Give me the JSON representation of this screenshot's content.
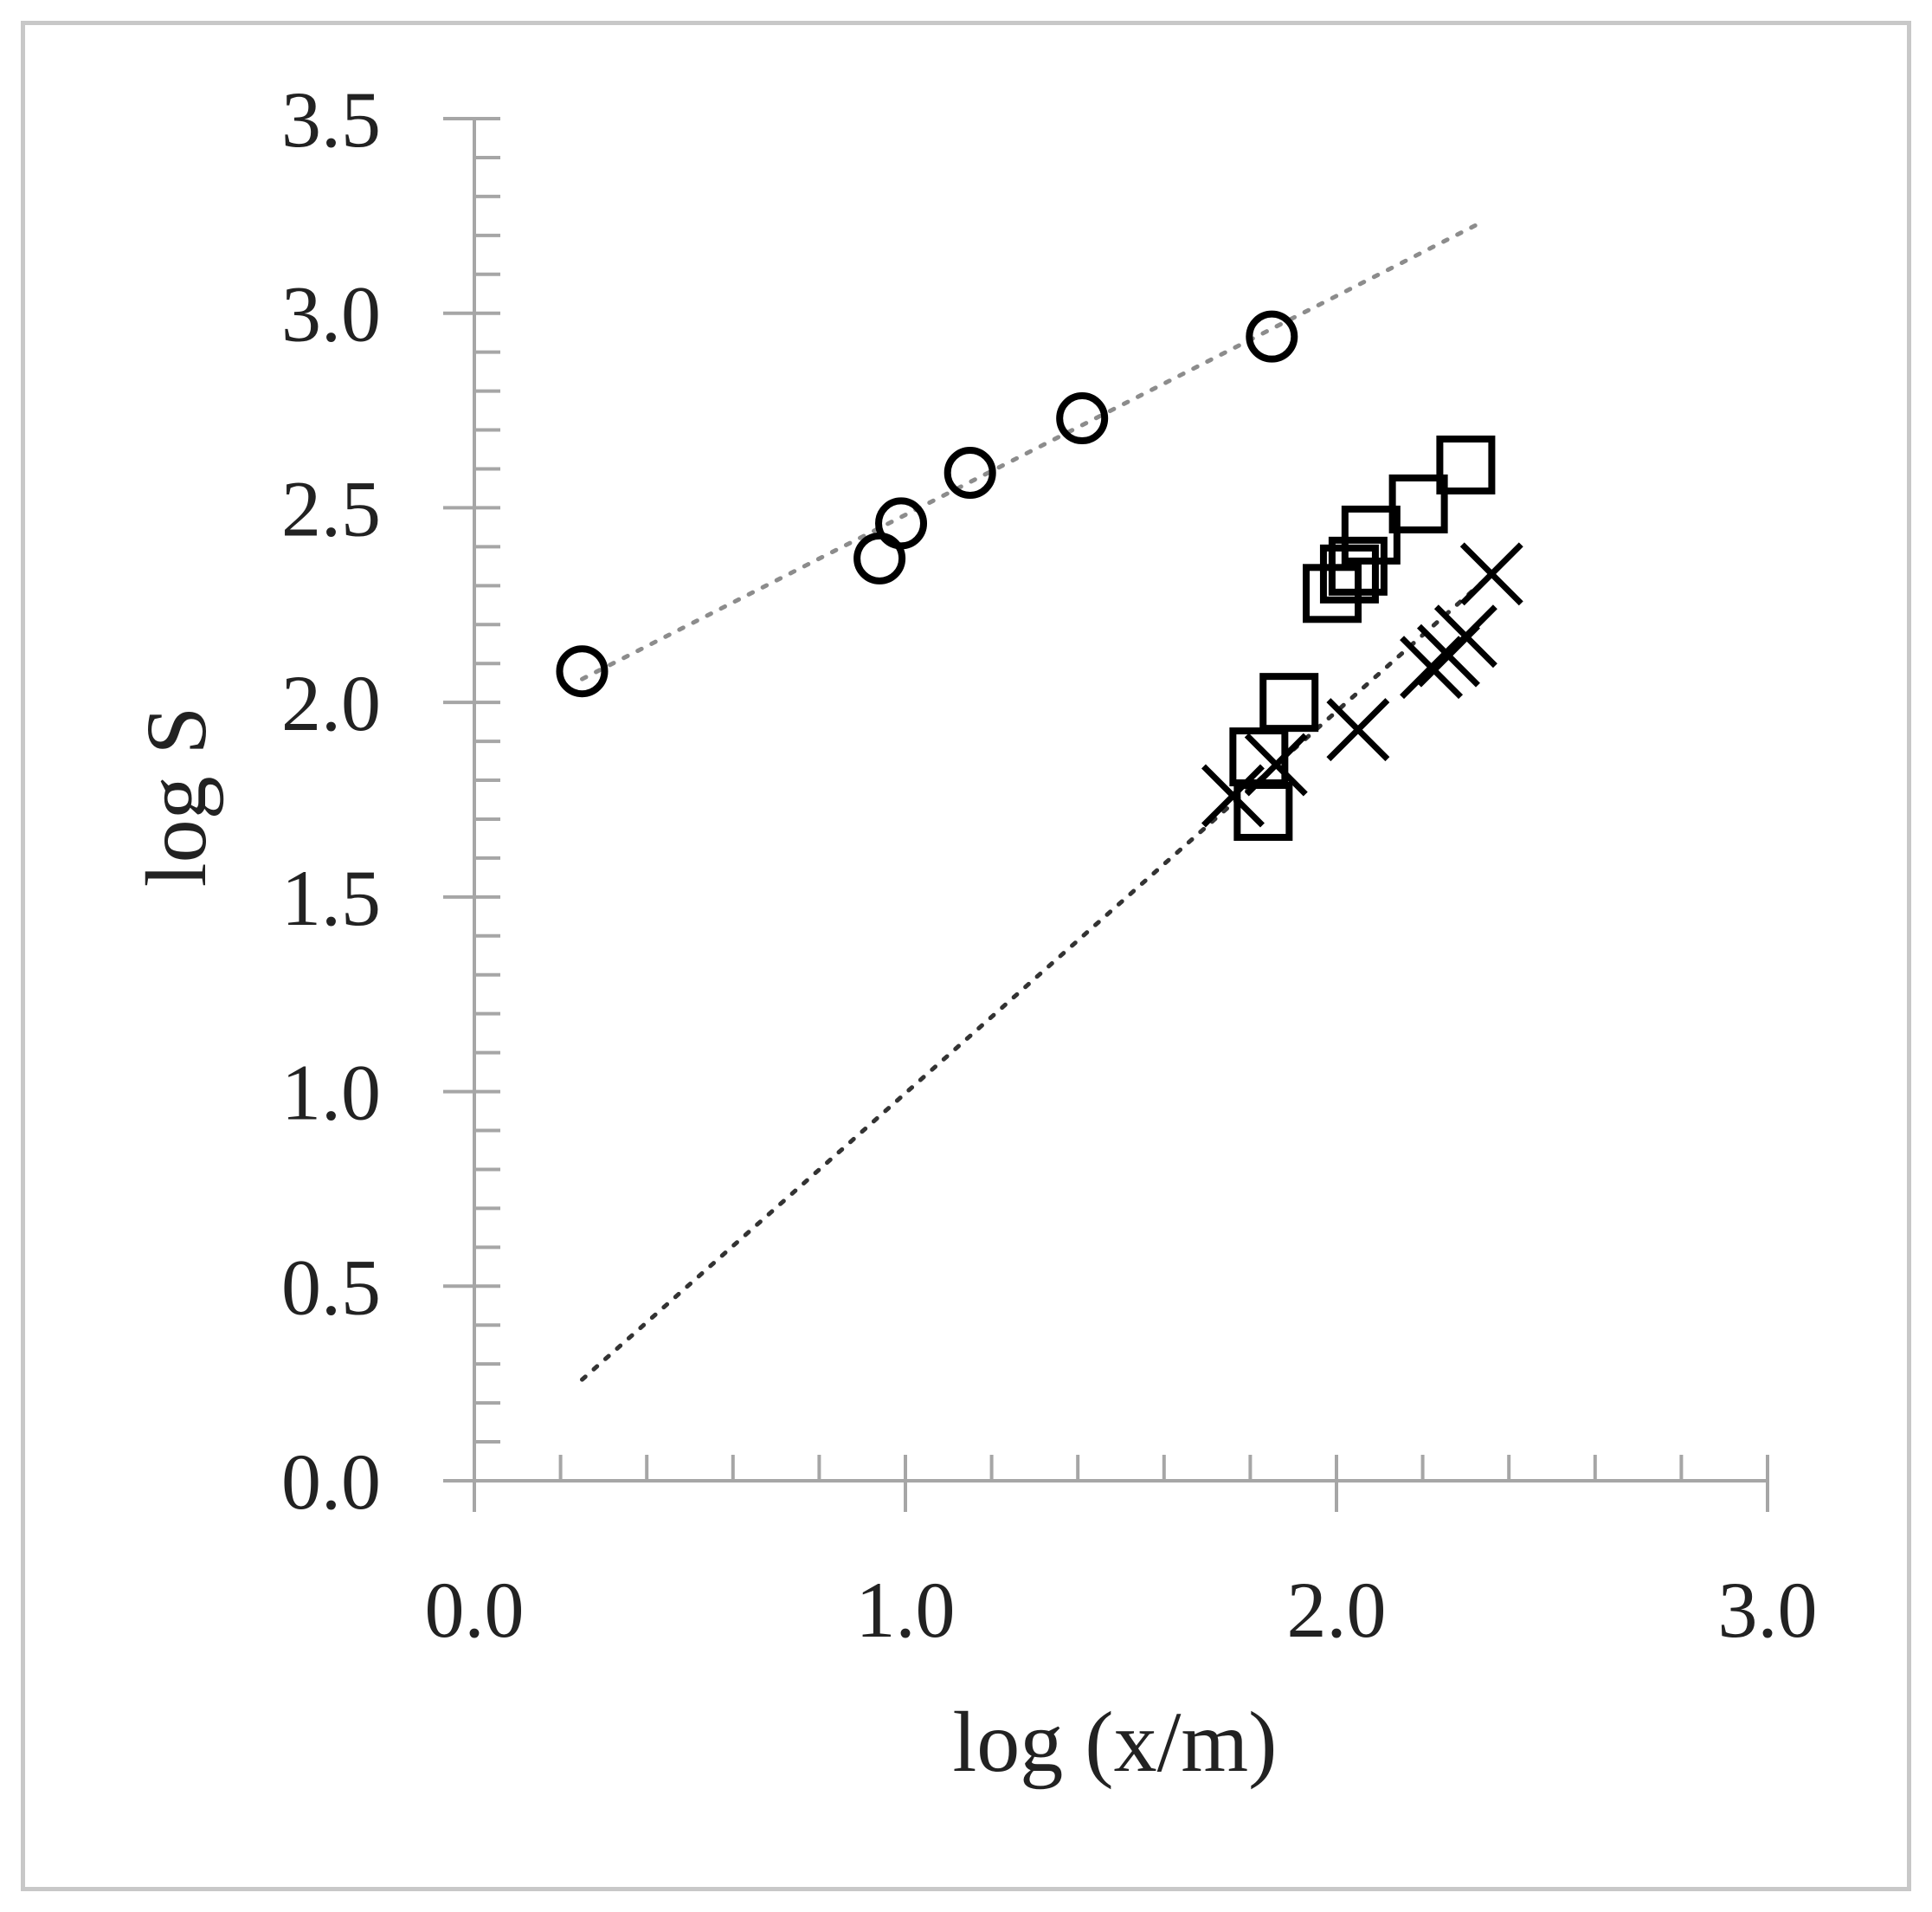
{
  "chart_data": {
    "type": "scatter",
    "title": "",
    "xlabel": "log (x/m)",
    "ylabel": "log S",
    "xlim": [
      0.0,
      3.0
    ],
    "ylim": [
      0.0,
      3.5
    ],
    "x_ticks": [
      "0.0",
      "1.0",
      "2.0",
      "3.0"
    ],
    "y_ticks": [
      "0.0",
      "0.5",
      "1.0",
      "1.5",
      "2.0",
      "2.5",
      "3.0",
      "3.5"
    ],
    "grid": false,
    "legend": "none",
    "series": [
      {
        "marker": "circle",
        "points": [
          [
            0.25,
            2.08
          ],
          [
            0.94,
            2.37
          ],
          [
            0.99,
            2.46
          ],
          [
            1.15,
            2.59
          ],
          [
            1.41,
            2.73
          ],
          [
            1.85,
            2.94
          ]
        ],
        "trendline": [
          [
            0.25,
            2.06
          ],
          [
            2.33,
            3.23
          ]
        ]
      },
      {
        "marker": "square",
        "points": [
          [
            1.83,
            1.72
          ],
          [
            1.82,
            1.86
          ],
          [
            1.89,
            2.0
          ],
          [
            1.99,
            2.28
          ],
          [
            2.03,
            2.33
          ],
          [
            2.05,
            2.35
          ],
          [
            2.08,
            2.43
          ],
          [
            2.19,
            2.51
          ],
          [
            2.3,
            2.61
          ]
        ]
      },
      {
        "marker": "x",
        "points": [
          [
            1.76,
            1.76
          ],
          [
            1.86,
            1.84
          ],
          [
            2.05,
            1.93
          ],
          [
            2.22,
            2.09
          ],
          [
            2.26,
            2.12
          ],
          [
            2.3,
            2.17
          ],
          [
            2.36,
            2.33
          ]
        ],
        "trendline": [
          [
            0.25,
            0.26
          ],
          [
            2.36,
            2.33
          ]
        ]
      }
    ],
    "colors": {
      "marker": "#000000",
      "axis": "#a6a6a6",
      "circle_trend": "#8c8c8c",
      "x_trend": "#333333"
    }
  }
}
